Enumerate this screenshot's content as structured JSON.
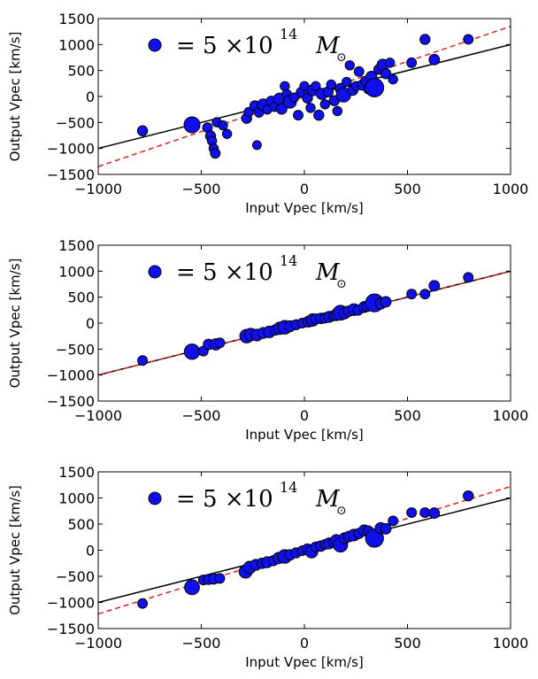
{
  "chart_data": [
    {
      "type": "scatter",
      "xlabel": "Input Vpec [km/s]",
      "ylabel": "Output Vpec [km/s]",
      "xlim": [
        -1000,
        1000
      ],
      "ylim": [
        -1500,
        1500
      ],
      "xticks": [
        -1000,
        -500,
        0,
        500,
        1000
      ],
      "yticks": [
        1500,
        1000,
        500,
        0,
        -500,
        -1000,
        -1500
      ],
      "xtick_labels": [
        "−1000",
        "−500",
        "0",
        "500",
        "1000"
      ],
      "ytick_labels": [
        "1500",
        "1000",
        "500",
        "0",
        "−500",
        "−1000",
        "−1500"
      ],
      "legend": {
        "placement": "top-left",
        "text_lhs": "= 5 ×10",
        "exponent": "14",
        "symbol": "M",
        "subscript": "⊙"
      },
      "reference_line": {
        "slope": 1,
        "intercept": 0,
        "color": "#000000",
        "style": "solid"
      },
      "fit_line": {
        "slope": 1.35,
        "intercept": 0,
        "color": "#dd2222",
        "style": "dashed"
      },
      "marker_color": "#1010ee",
      "points": [
        {
          "x": -785,
          "y": -660,
          "m": 1.2
        },
        {
          "x": -545,
          "y": -545,
          "m": 3.0
        },
        {
          "x": -470,
          "y": -600,
          "m": 1.1
        },
        {
          "x": -455,
          "y": -760,
          "m": 1.2
        },
        {
          "x": -448,
          "y": -855,
          "m": 1.0
        },
        {
          "x": -440,
          "y": -1000,
          "m": 1.0
        },
        {
          "x": -432,
          "y": -1095,
          "m": 1.1
        },
        {
          "x": -425,
          "y": -495,
          "m": 1.0
        },
        {
          "x": -395,
          "y": -555,
          "m": 1.0
        },
        {
          "x": -375,
          "y": -720,
          "m": 1.0
        },
        {
          "x": -230,
          "y": -935,
          "m": 0.9
        },
        {
          "x": -280,
          "y": -420,
          "m": 1.2
        },
        {
          "x": -270,
          "y": -300,
          "m": 1.0
        },
        {
          "x": -240,
          "y": -180,
          "m": 1.2
        },
        {
          "x": -220,
          "y": -310,
          "m": 1.0
        },
        {
          "x": -200,
          "y": -160,
          "m": 1.6
        },
        {
          "x": -180,
          "y": -250,
          "m": 1.0
        },
        {
          "x": -160,
          "y": -90,
          "m": 1.2
        },
        {
          "x": -145,
          "y": -200,
          "m": 1.0
        },
        {
          "x": -120,
          "y": -50,
          "m": 1.7
        },
        {
          "x": -110,
          "y": -240,
          "m": 1.3
        },
        {
          "x": -95,
          "y": 200,
          "m": 1.0
        },
        {
          "x": -85,
          "y": 40,
          "m": 1.1
        },
        {
          "x": -70,
          "y": -100,
          "m": 2.0
        },
        {
          "x": -50,
          "y": -20,
          "m": 1.0
        },
        {
          "x": -30,
          "y": -360,
          "m": 1.1
        },
        {
          "x": -15,
          "y": 80,
          "m": 1.2
        },
        {
          "x": 0,
          "y": 200,
          "m": 1.0
        },
        {
          "x": 15,
          "y": -30,
          "m": 1.2
        },
        {
          "x": 30,
          "y": -220,
          "m": 1.0
        },
        {
          "x": 40,
          "y": 120,
          "m": 1.4
        },
        {
          "x": 55,
          "y": 200,
          "m": 1.0
        },
        {
          "x": 70,
          "y": -360,
          "m": 1.2
        },
        {
          "x": 85,
          "y": 50,
          "m": 1.5
        },
        {
          "x": 100,
          "y": -150,
          "m": 1.0
        },
        {
          "x": 115,
          "y": 90,
          "m": 1.2
        },
        {
          "x": 130,
          "y": 230,
          "m": 1.0
        },
        {
          "x": 145,
          "y": -80,
          "m": 1.2
        },
        {
          "x": 160,
          "y": -280,
          "m": 1.0
        },
        {
          "x": 175,
          "y": 150,
          "m": 1.3
        },
        {
          "x": 190,
          "y": 30,
          "m": 2.4
        },
        {
          "x": 205,
          "y": 280,
          "m": 1.0
        },
        {
          "x": 220,
          "y": 600,
          "m": 1.0
        },
        {
          "x": 235,
          "y": 120,
          "m": 1.2
        },
        {
          "x": 250,
          "y": 200,
          "m": 1.0
        },
        {
          "x": 265,
          "y": 480,
          "m": 1.1
        },
        {
          "x": 280,
          "y": 220,
          "m": 1.2
        },
        {
          "x": 295,
          "y": 300,
          "m": 1.0
        },
        {
          "x": 310,
          "y": 140,
          "m": 1.0
        },
        {
          "x": 325,
          "y": 380,
          "m": 1.4
        },
        {
          "x": 340,
          "y": 170,
          "m": 4.0
        },
        {
          "x": 360,
          "y": 520,
          "m": 1.1
        },
        {
          "x": 380,
          "y": 610,
          "m": 1.5
        },
        {
          "x": 395,
          "y": 440,
          "m": 1.2
        },
        {
          "x": 415,
          "y": 650,
          "m": 1.0
        },
        {
          "x": 430,
          "y": 330,
          "m": 1.0
        },
        {
          "x": 520,
          "y": 650,
          "m": 1.1
        },
        {
          "x": 585,
          "y": 1100,
          "m": 1.2
        },
        {
          "x": 630,
          "y": 710,
          "m": 1.3
        },
        {
          "x": 795,
          "y": 1100,
          "m": 1.1
        }
      ]
    },
    {
      "type": "scatter",
      "xlabel": "Input Vpec [km/s]",
      "ylabel": "Output Vpec [km/s]",
      "xlim": [
        -1000,
        1000
      ],
      "ylim": [
        -1500,
        1500
      ],
      "xticks": [
        -1000,
        -500,
        0,
        500,
        1000
      ],
      "yticks": [
        1500,
        1000,
        500,
        0,
        -500,
        -1000,
        -1500
      ],
      "xtick_labels": [
        "−1000",
        "−500",
        "0",
        "500",
        "1000"
      ],
      "ytick_labels": [
        "1500",
        "1000",
        "500",
        "0",
        "−500",
        "−1000",
        "−1500"
      ],
      "legend": {
        "placement": "top-left",
        "text_lhs": "= 5 ×10",
        "exponent": "14",
        "symbol": "M",
        "subscript": "⊙"
      },
      "reference_line": {
        "slope": 1,
        "intercept": 0,
        "color": "#000000",
        "style": "solid"
      },
      "fit_line": {
        "slope": 1.0,
        "intercept": 0,
        "color": "#dd2222",
        "style": "dashed"
      },
      "marker_color": "#1010ee",
      "points": [
        {
          "x": -785,
          "y": -720,
          "m": 1.1
        },
        {
          "x": -545,
          "y": -550,
          "m": 2.8
        },
        {
          "x": -490,
          "y": -540,
          "m": 1.1
        },
        {
          "x": -465,
          "y": -410,
          "m": 1.3
        },
        {
          "x": -430,
          "y": -410,
          "m": 1.5
        },
        {
          "x": -410,
          "y": -380,
          "m": 1.1
        },
        {
          "x": -280,
          "y": -250,
          "m": 2.2
        },
        {
          "x": -260,
          "y": -220,
          "m": 1.8
        },
        {
          "x": -230,
          "y": -230,
          "m": 1.6
        },
        {
          "x": -200,
          "y": -190,
          "m": 1.4
        },
        {
          "x": -170,
          "y": -170,
          "m": 1.6
        },
        {
          "x": -140,
          "y": -130,
          "m": 1.3
        },
        {
          "x": -120,
          "y": -100,
          "m": 1.8
        },
        {
          "x": -95,
          "y": -80,
          "m": 2.2
        },
        {
          "x": -70,
          "y": -60,
          "m": 1.4
        },
        {
          "x": -40,
          "y": -30,
          "m": 1.2
        },
        {
          "x": -10,
          "y": 0,
          "m": 1.1
        },
        {
          "x": 20,
          "y": 30,
          "m": 1.4
        },
        {
          "x": 40,
          "y": 60,
          "m": 1.8
        },
        {
          "x": 55,
          "y": 80,
          "m": 1.2
        },
        {
          "x": 80,
          "y": 90,
          "m": 1.3
        },
        {
          "x": 100,
          "y": 100,
          "m": 1.2
        },
        {
          "x": 120,
          "y": 120,
          "m": 1.4
        },
        {
          "x": 140,
          "y": 140,
          "m": 1.1
        },
        {
          "x": 155,
          "y": 160,
          "m": 1.6
        },
        {
          "x": 175,
          "y": 200,
          "m": 2.6
        },
        {
          "x": 195,
          "y": 190,
          "m": 1.5
        },
        {
          "x": 215,
          "y": 230,
          "m": 1.3
        },
        {
          "x": 240,
          "y": 260,
          "m": 1.6
        },
        {
          "x": 260,
          "y": 250,
          "m": 1.2
        },
        {
          "x": 290,
          "y": 310,
          "m": 1.4
        },
        {
          "x": 305,
          "y": 320,
          "m": 1.2
        },
        {
          "x": 340,
          "y": 390,
          "m": 3.8
        },
        {
          "x": 370,
          "y": 380,
          "m": 1.5
        },
        {
          "x": 395,
          "y": 410,
          "m": 1.3
        },
        {
          "x": 520,
          "y": 560,
          "m": 1.1
        },
        {
          "x": 585,
          "y": 560,
          "m": 1.1
        },
        {
          "x": 630,
          "y": 720,
          "m": 1.3
        },
        {
          "x": 795,
          "y": 880,
          "m": 1.1
        }
      ]
    },
    {
      "type": "scatter",
      "xlabel": "Input Vpec [km/s]",
      "ylabel": "Output Vpec [km/s]",
      "xlim": [
        -1000,
        1000
      ],
      "ylim": [
        -1500,
        1500
      ],
      "xticks": [
        -1000,
        -500,
        0,
        500,
        1000
      ],
      "yticks": [
        1500,
        1000,
        500,
        0,
        -500,
        -1000,
        -1500
      ],
      "xtick_labels": [
        "−1000",
        "−500",
        "0",
        "500",
        "1000"
      ],
      "ytick_labels": [
        "1500",
        "1000",
        "500",
        "0",
        "−500",
        "−1000",
        "−1500"
      ],
      "legend": {
        "placement": "top-left",
        "text_lhs": "= 5 ×10",
        "exponent": "14",
        "symbol": "M",
        "subscript": "⊙"
      },
      "reference_line": {
        "slope": 1,
        "intercept": 0,
        "color": "#000000",
        "style": "solid"
      },
      "fit_line": {
        "slope": 1.22,
        "intercept": 0,
        "color": "#dd2222",
        "style": "dashed"
      },
      "marker_color": "#1010ee",
      "points": [
        {
          "x": -785,
          "y": -1020,
          "m": 1.1
        },
        {
          "x": -545,
          "y": -710,
          "m": 2.6
        },
        {
          "x": -490,
          "y": -570,
          "m": 1.1
        },
        {
          "x": -465,
          "y": -560,
          "m": 1.2
        },
        {
          "x": -440,
          "y": -550,
          "m": 1.3
        },
        {
          "x": -410,
          "y": -540,
          "m": 1.1
        },
        {
          "x": -285,
          "y": -410,
          "m": 2.0
        },
        {
          "x": -265,
          "y": -330,
          "m": 1.8
        },
        {
          "x": -235,
          "y": -280,
          "m": 1.4
        },
        {
          "x": -205,
          "y": -250,
          "m": 1.3
        },
        {
          "x": -180,
          "y": -230,
          "m": 1.4
        },
        {
          "x": -150,
          "y": -200,
          "m": 1.2
        },
        {
          "x": -125,
          "y": -150,
          "m": 1.5
        },
        {
          "x": -95,
          "y": -120,
          "m": 2.2
        },
        {
          "x": -70,
          "y": -90,
          "m": 1.3
        },
        {
          "x": -40,
          "y": -50,
          "m": 1.2
        },
        {
          "x": -10,
          "y": -10,
          "m": 1.1
        },
        {
          "x": 15,
          "y": 20,
          "m": 1.3
        },
        {
          "x": 35,
          "y": -30,
          "m": 1.8
        },
        {
          "x": 55,
          "y": 60,
          "m": 1.2
        },
        {
          "x": 80,
          "y": 80,
          "m": 1.3
        },
        {
          "x": 100,
          "y": 110,
          "m": 1.1
        },
        {
          "x": 120,
          "y": 130,
          "m": 1.4
        },
        {
          "x": 140,
          "y": 150,
          "m": 1.1
        },
        {
          "x": 155,
          "y": 190,
          "m": 1.5
        },
        {
          "x": 175,
          "y": 100,
          "m": 2.4
        },
        {
          "x": 195,
          "y": 230,
          "m": 1.4
        },
        {
          "x": 215,
          "y": 260,
          "m": 1.3
        },
        {
          "x": 240,
          "y": 290,
          "m": 1.6
        },
        {
          "x": 265,
          "y": 320,
          "m": 1.2
        },
        {
          "x": 290,
          "y": 380,
          "m": 1.4
        },
        {
          "x": 310,
          "y": 370,
          "m": 1.2
        },
        {
          "x": 340,
          "y": 230,
          "m": 3.8
        },
        {
          "x": 370,
          "y": 420,
          "m": 1.5
        },
        {
          "x": 395,
          "y": 410,
          "m": 1.3
        },
        {
          "x": 430,
          "y": 560,
          "m": 1.1
        },
        {
          "x": 520,
          "y": 720,
          "m": 1.1
        },
        {
          "x": 585,
          "y": 720,
          "m": 1.1
        },
        {
          "x": 630,
          "y": 710,
          "m": 1.3
        },
        {
          "x": 795,
          "y": 1040,
          "m": 1.2
        }
      ]
    }
  ]
}
